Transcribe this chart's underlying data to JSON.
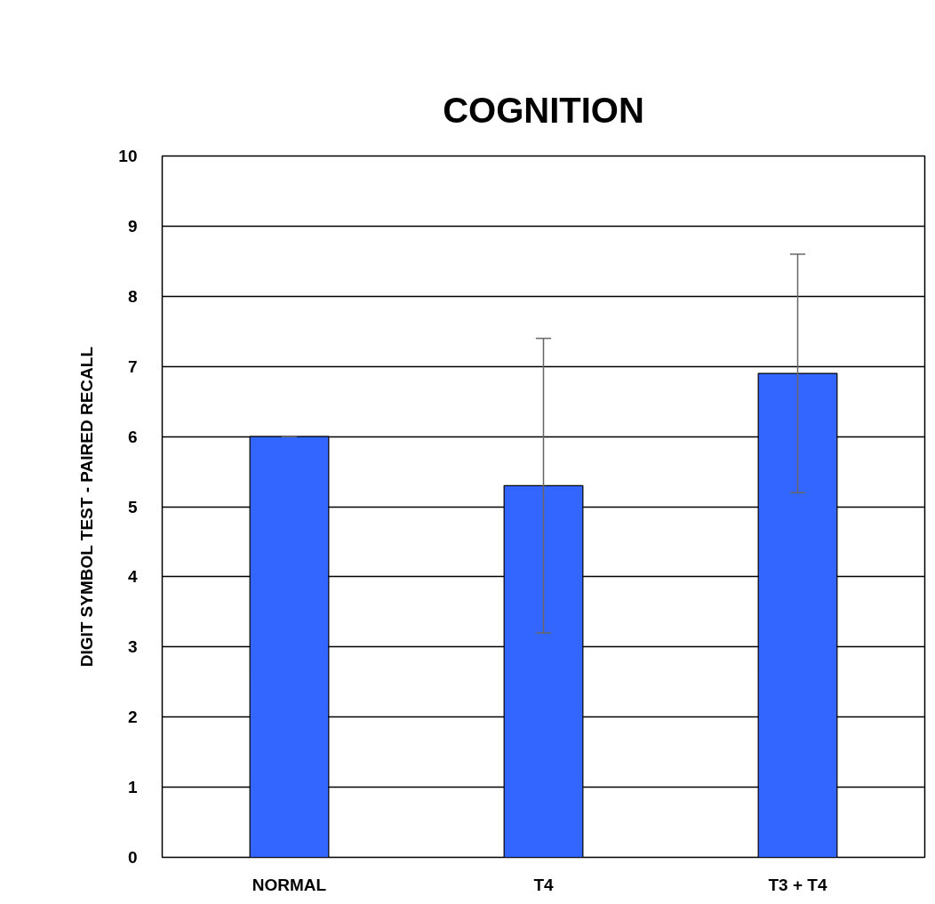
{
  "chart_data": {
    "type": "bar",
    "title": "COGNITION",
    "ylabel": "DIGIT SYMBOL TEST - PAIRED RECALL",
    "categories": [
      "NORMAL",
      "T4",
      "T3 + T4"
    ],
    "values": [
      6.0,
      5.3,
      6.9
    ],
    "errors": [
      0,
      2.1,
      1.7
    ],
    "color": "#3366ff",
    "ylim": [
      0,
      10
    ],
    "yticks": [
      0,
      1,
      2,
      3,
      4,
      5,
      6,
      7,
      8,
      9,
      10
    ],
    "grid": "y"
  }
}
